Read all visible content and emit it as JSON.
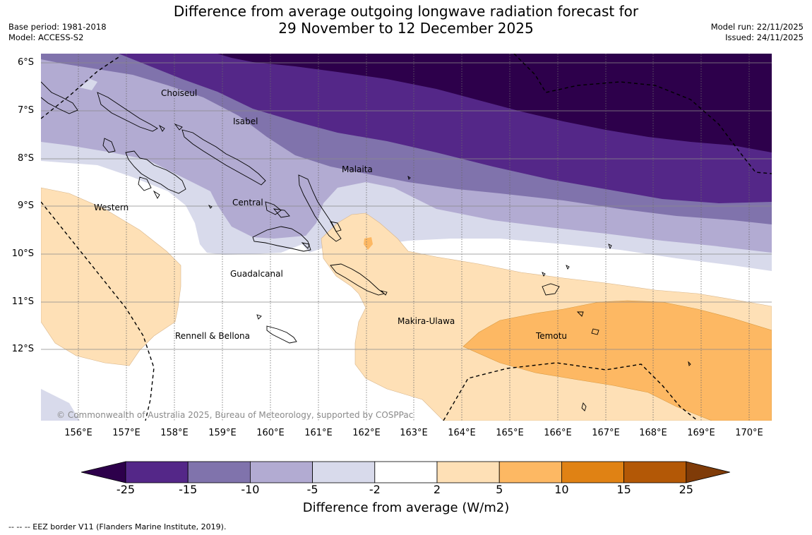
{
  "header": {
    "title_line1": "Difference from average outgoing longwave radiation forecast for",
    "title_line2": "29 November to 12 December 2025",
    "base_period": "Base period: 1981-2018",
    "model": "Model: ACCESS-S2",
    "model_run": "Model run: 22/11/2025",
    "issued": "Issued: 24/11/2025"
  },
  "map": {
    "lat_labels": [
      "6°S",
      "7°S",
      "8°S",
      "9°S",
      "10°S",
      "11°S",
      "12°S"
    ],
    "lon_labels": [
      "156°E",
      "157°E",
      "158°E",
      "159°E",
      "160°E",
      "161°E",
      "162°E",
      "163°E",
      "164°E",
      "165°E",
      "166°E",
      "167°E",
      "168°E",
      "169°E",
      "170°E"
    ],
    "provinces": [
      "Choiseul",
      "Isabel",
      "Malaita",
      "Central",
      "Western",
      "Guadalcanal",
      "Makira-Ulawa",
      "Rennell & Bellona",
      "Temotu"
    ],
    "copyright": "© Commonwealth of Australia 2025, Bureau of Meteorology, supported by COSPPac"
  },
  "colorbar": {
    "ticks": [
      "-25",
      "-15",
      "-10",
      "-5",
      "-2",
      "2",
      "5",
      "10",
      "15",
      "25"
    ],
    "colors": [
      "#2d004b",
      "#542788",
      "#8073ac",
      "#b2abd2",
      "#d8daeb",
      "#ffffff",
      "#fee0b6",
      "#fdb863",
      "#e08214",
      "#b35806",
      "#7f3b08"
    ],
    "title": "Difference from average (W/m2)"
  },
  "footer": {
    "eez_note": "--  --  -- EEZ border V11 (Flanders Marine Institute, 2019)."
  }
}
